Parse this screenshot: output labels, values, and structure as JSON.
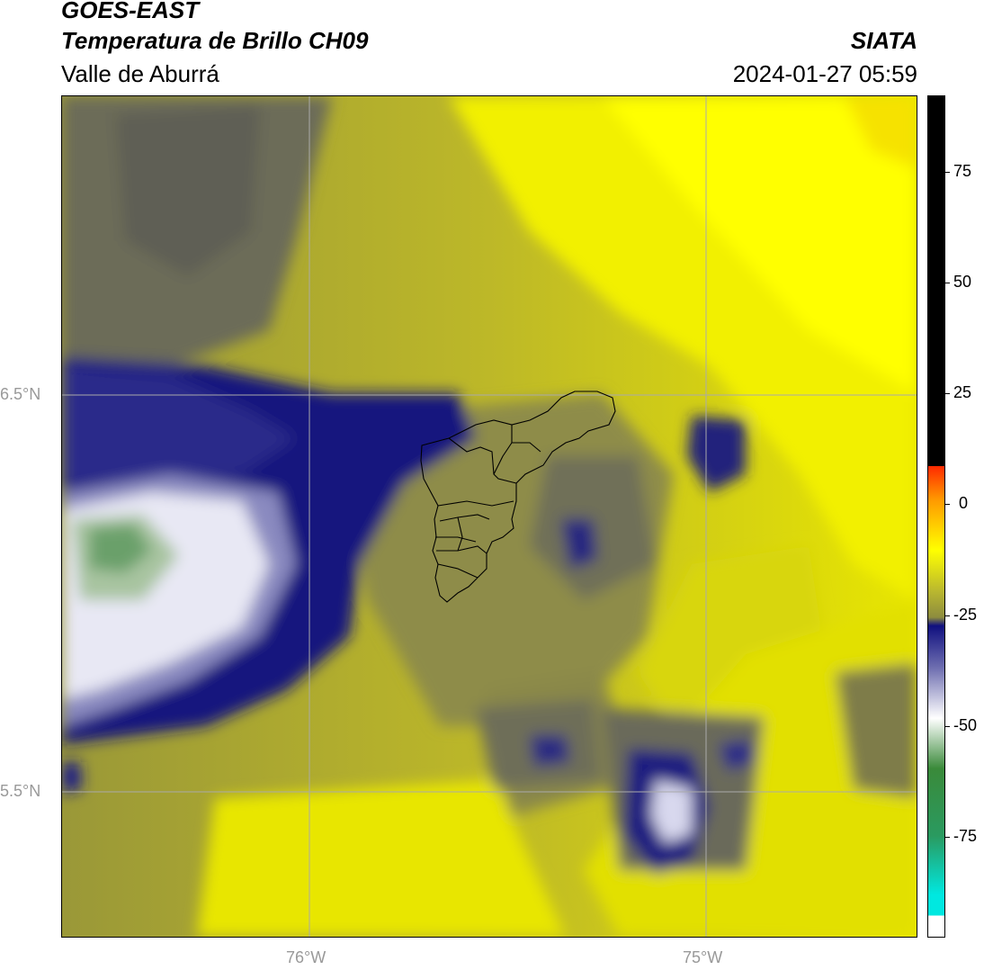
{
  "header": {
    "title_line1": "GOES-EAST",
    "title_line2": "Temperatura de Brillo CH09",
    "subtitle": "Valle de Aburrá",
    "organization": "SIATA",
    "datetime": "2024-01-27 05:59"
  },
  "map": {
    "lat_labels": [
      "6.5°N",
      "5.5°N"
    ],
    "lon_labels": [
      "76°W",
      "75°W"
    ],
    "gridline_color": "#aaaaaa",
    "boundary_color": "#000000"
  },
  "colorbar": {
    "tick_labels": [
      "75",
      "50",
      "25",
      "0",
      "-25",
      "-50",
      "-75"
    ],
    "colors": {
      "black": "#000000",
      "red": "#ff2a00",
      "orange": "#ff9900",
      "yellow": "#ffff00",
      "olive": "#8d8c3e",
      "navy": "#10107f",
      "white": "#ffffff",
      "green": "#3a8a3a",
      "cyan": "#00e8e0"
    }
  }
}
